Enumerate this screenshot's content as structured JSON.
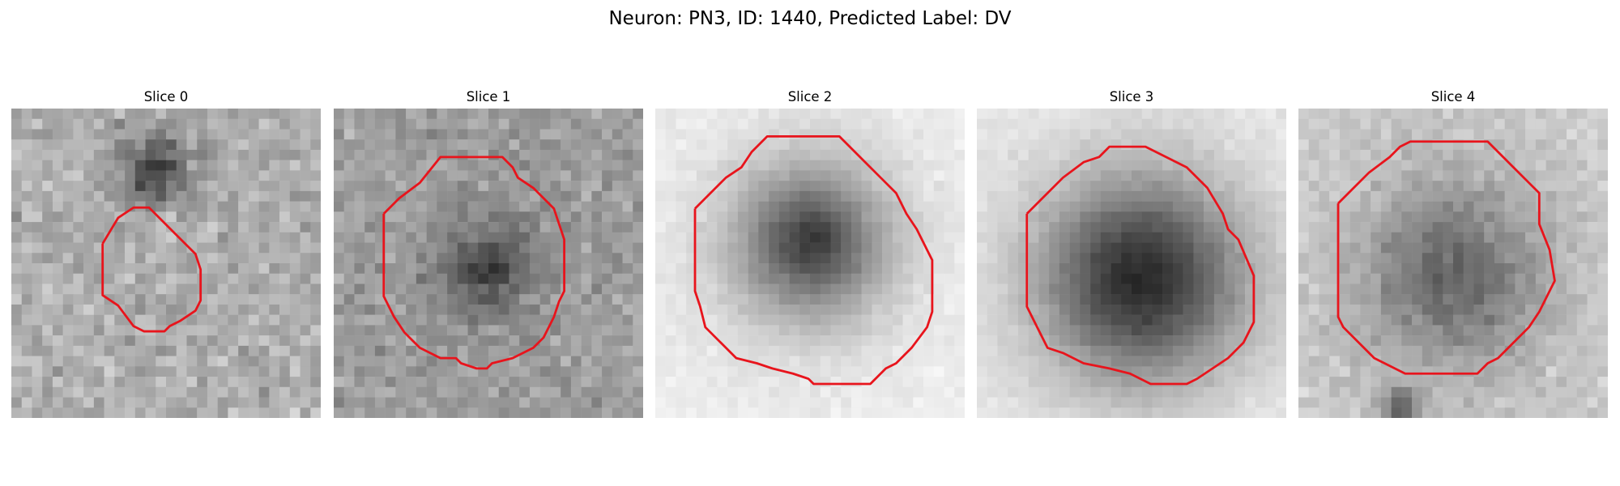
{
  "figure": {
    "title": "Neuron: PN3, ID: 1440, Predicted Label: DV"
  },
  "panels": [
    {
      "title": "Slice 0"
    },
    {
      "title": "Slice 1"
    },
    {
      "title": "Slice 2"
    },
    {
      "title": "Slice 3"
    },
    {
      "title": "Slice 4"
    }
  ],
  "colors": {
    "roi_outline": "#e8141c",
    "background": "#ffffff"
  }
}
